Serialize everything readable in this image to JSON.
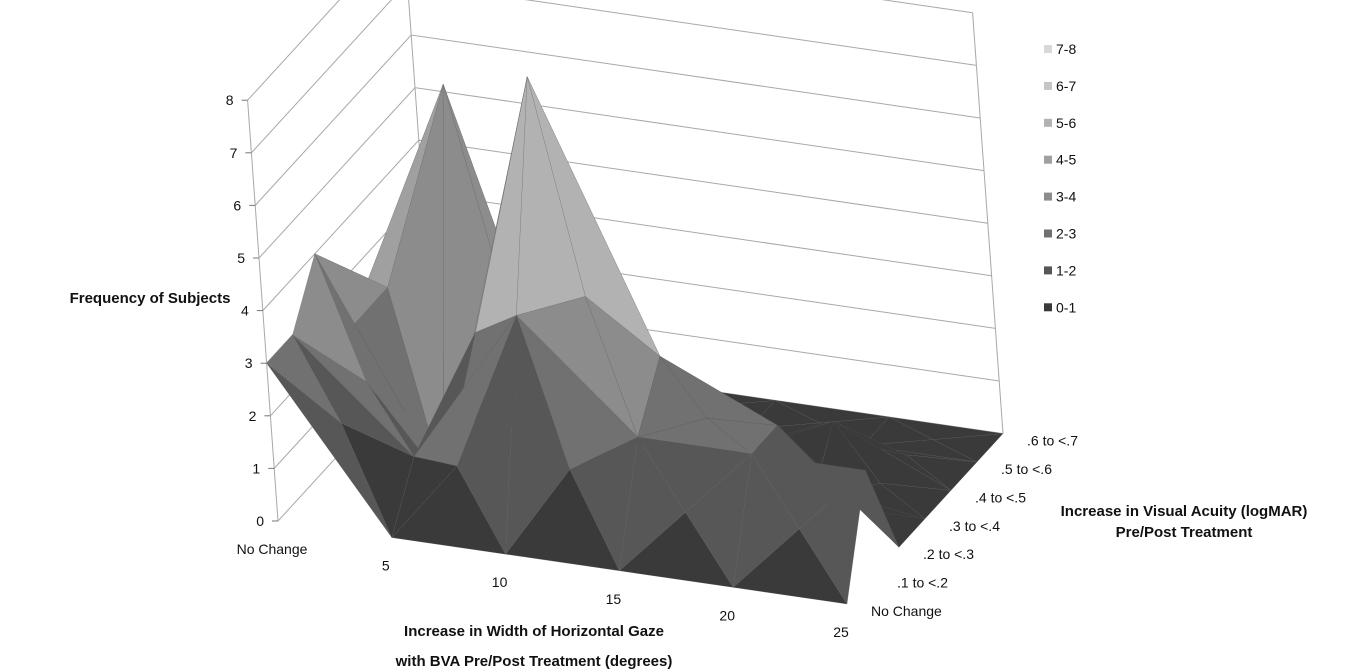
{
  "chart_data": {
    "type": "surface",
    "title": "",
    "zlabel": "Frequency of Subjects",
    "xlabel_line1": "Increase in Width of Horizontal Gaze",
    "xlabel_line2": "with BVA Pre/Post Treatment (degrees)",
    "ylabel_line1": "Increase in Visual Acuity (logMAR)",
    "ylabel_line2": "Pre/Post Treatment",
    "x_categories": [
      "No Change",
      "5",
      "10",
      "15",
      "20",
      "25"
    ],
    "y_categories": [
      "No Change",
      ".1 to <.2",
      ".2 to <.3",
      ".3 to <.4",
      ".4 to <.5",
      ".5 to <.6",
      ".6 to <.7"
    ],
    "z_ticks": [
      0,
      1,
      2,
      3,
      4,
      5,
      6,
      7,
      8
    ],
    "zlim": [
      0,
      8
    ],
    "legend_position": "right",
    "legend": [
      {
        "label": "7-8",
        "color": "#d7d7d7"
      },
      {
        "label": "6-7",
        "color": "#c6c6c6"
      },
      {
        "label": "5-6",
        "color": "#b2b2b2"
      },
      {
        "label": "4-5",
        "color": "#a0a0a0"
      },
      {
        "label": "3-4",
        "color": "#8c8c8c"
      },
      {
        "label": "2-3",
        "color": "#717171"
      },
      {
        "label": "1-2",
        "color": "#575757"
      },
      {
        "label": "0-1",
        "color": "#3a3a3a"
      }
    ],
    "values_by_y_then_x": [
      [
        3,
        0,
        0,
        0,
        0,
        0
      ],
      [
        3,
        1,
        4,
        2,
        2,
        2
      ],
      [
        4,
        0,
        8,
        3,
        2,
        0
      ],
      [
        2,
        7,
        0,
        2,
        0,
        0
      ],
      [
        0,
        0,
        0,
        0,
        1,
        0
      ],
      [
        0,
        0,
        0,
        0,
        0,
        0
      ],
      [
        0,
        0,
        0,
        0,
        0,
        0
      ]
    ]
  }
}
